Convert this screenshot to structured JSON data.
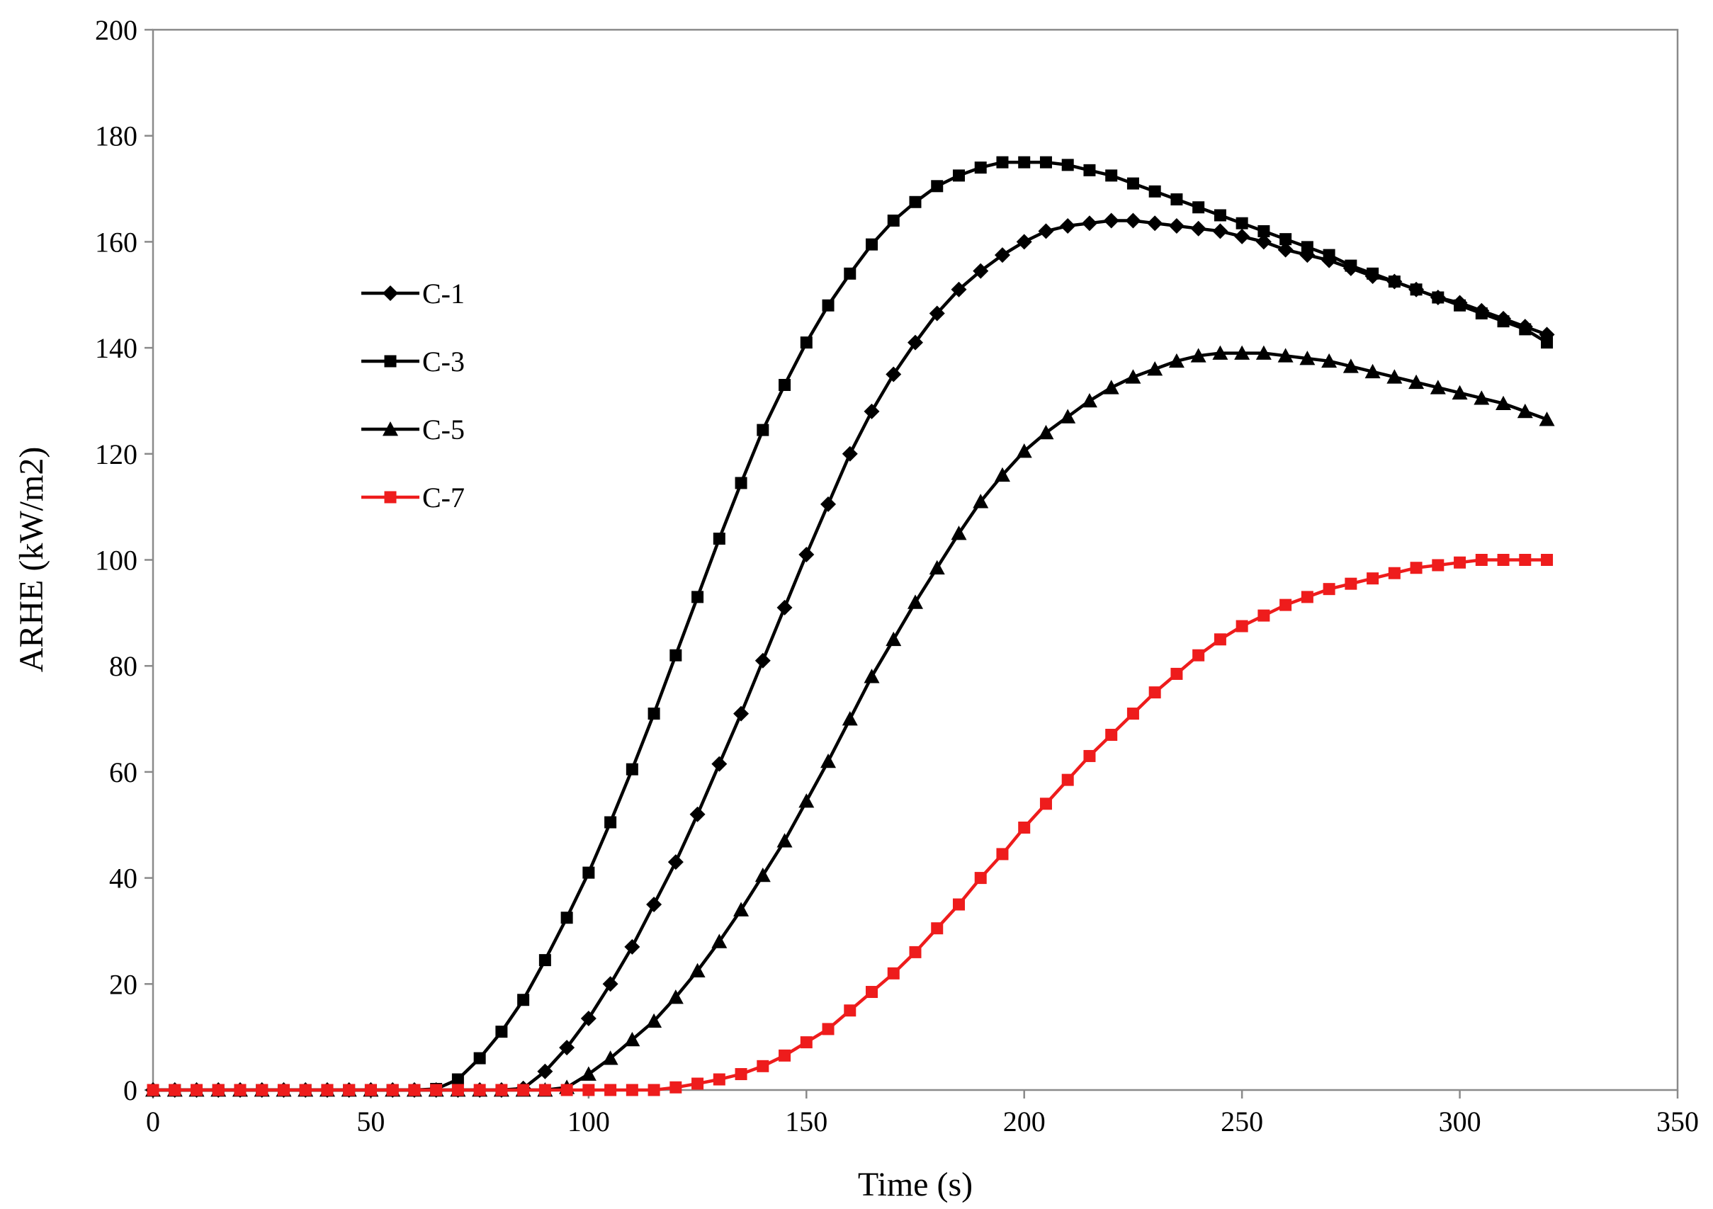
{
  "chart_data": {
    "type": "line",
    "xlabel": "Time (s)",
    "ylabel": "ARHE (kW/m2)",
    "xlim": [
      0,
      350
    ],
    "ylim": [
      0,
      200
    ],
    "xticks": [
      0,
      50,
      100,
      150,
      200,
      250,
      300,
      350
    ],
    "yticks": [
      0,
      20,
      40,
      60,
      80,
      100,
      120,
      140,
      160,
      180,
      200
    ],
    "grid": false,
    "legend_position": "left",
    "x": [
      0,
      5,
      10,
      15,
      20,
      25,
      30,
      35,
      40,
      45,
      50,
      55,
      60,
      65,
      70,
      75,
      80,
      85,
      90,
      95,
      100,
      105,
      110,
      115,
      120,
      125,
      130,
      135,
      140,
      145,
      150,
      155,
      160,
      165,
      170,
      175,
      180,
      185,
      190,
      195,
      200,
      205,
      210,
      215,
      220,
      225,
      230,
      235,
      240,
      245,
      250,
      255,
      260,
      265,
      270,
      275,
      280,
      285,
      290,
      295,
      300,
      305,
      310,
      315,
      320
    ],
    "series": [
      {
        "name": "C-1",
        "color": "#000000",
        "marker": "diamond",
        "values": [
          0,
          0,
          0,
          0,
          0,
          0,
          0,
          0,
          0,
          0,
          0,
          0,
          0,
          0,
          0,
          0,
          0,
          0.3,
          3.5,
          8,
          13.5,
          20,
          27,
          35,
          43,
          52,
          61.5,
          71,
          81,
          91,
          101,
          110.5,
          120,
          128,
          135,
          141,
          146.5,
          151,
          154.5,
          157.5,
          160,
          162,
          163,
          163.5,
          164,
          164,
          163.5,
          163,
          162.5,
          162,
          161,
          160,
          158.5,
          157.5,
          156.5,
          155,
          153.5,
          152.5,
          151,
          149.5,
          148.5,
          147,
          145.5,
          144,
          142.5
        ]
      },
      {
        "name": "C-3",
        "color": "#000000",
        "marker": "square",
        "values": [
          0,
          0,
          0,
          0,
          0,
          0,
          0,
          0,
          0,
          0,
          0,
          0,
          0,
          0.2,
          2,
          6,
          11,
          17,
          24.5,
          32.5,
          41,
          50.5,
          60.5,
          71,
          82,
          93,
          104,
          114.5,
          124.5,
          133,
          141,
          148,
          154,
          159.5,
          164,
          167.5,
          170.5,
          172.5,
          174,
          175,
          175,
          175,
          174.5,
          173.5,
          172.5,
          171,
          169.5,
          168,
          166.5,
          165,
          163.5,
          162,
          160.5,
          159,
          157.5,
          155.5,
          154,
          152.5,
          151,
          149.5,
          148,
          146.5,
          145,
          143.5,
          141
        ]
      },
      {
        "name": "C-5",
        "color": "#000000",
        "marker": "triangle",
        "values": [
          0,
          0,
          0,
          0,
          0,
          0,
          0,
          0,
          0,
          0,
          0,
          0,
          0,
          0,
          0,
          0,
          0,
          0,
          0,
          0.5,
          3,
          6,
          9.5,
          13,
          17.5,
          22.5,
          28,
          34,
          40.5,
          47,
          54.5,
          62,
          70,
          78,
          85,
          92,
          98.5,
          105,
          111,
          116,
          120.5,
          124,
          127,
          130,
          132.5,
          134.5,
          136,
          137.5,
          138.5,
          139,
          139,
          139,
          138.5,
          138,
          137.5,
          136.5,
          135.5,
          134.5,
          133.5,
          132.5,
          131.5,
          130.5,
          129.5,
          128,
          126.5
        ]
      },
      {
        "name": "C-7",
        "color": "#ee1c1c",
        "marker": "square",
        "values": [
          0,
          0,
          0,
          0,
          0,
          0,
          0,
          0,
          0,
          0,
          0,
          0,
          0,
          0,
          0,
          0,
          0,
          0,
          0,
          0,
          0,
          0,
          0,
          0,
          0.5,
          1.2,
          2,
          3,
          4.5,
          6.5,
          9,
          11.5,
          15,
          18.5,
          22,
          26,
          30.5,
          35,
          40,
          44.5,
          49.5,
          54,
          58.5,
          63,
          67,
          71,
          75,
          78.5,
          82,
          85,
          87.5,
          89.5,
          91.5,
          93,
          94.5,
          95.5,
          96.5,
          97.5,
          98.5,
          99,
          99.5,
          100,
          100,
          100,
          100
        ]
      }
    ]
  }
}
